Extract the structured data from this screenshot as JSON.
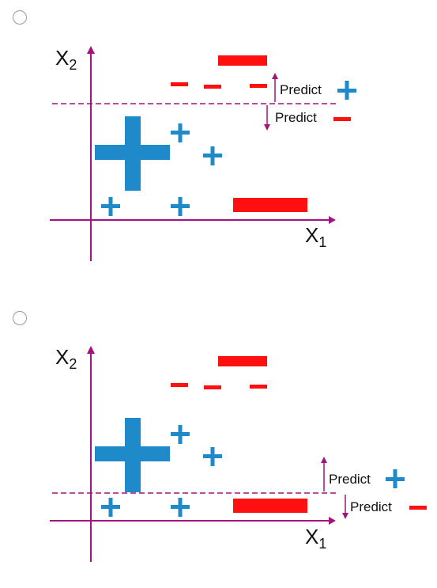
{
  "options": [
    {
      "radio_selected": false,
      "x1_label": "X1",
      "x2_label": "X2",
      "upper_region_label": "Predict",
      "upper_region_class": "+",
      "lower_region_label": "Predict",
      "lower_region_class": "-"
    },
    {
      "radio_selected": false,
      "x1_label": "X1",
      "x2_label": "X2",
      "upper_region_label": "Predict",
      "upper_region_class": "+",
      "lower_region_label": "Predict",
      "lower_region_class": "-"
    }
  ],
  "colors": {
    "axis": "#a0147c",
    "plus": "#1f8ac9",
    "minus": "#ff1010",
    "boundary": "#a0147c"
  }
}
